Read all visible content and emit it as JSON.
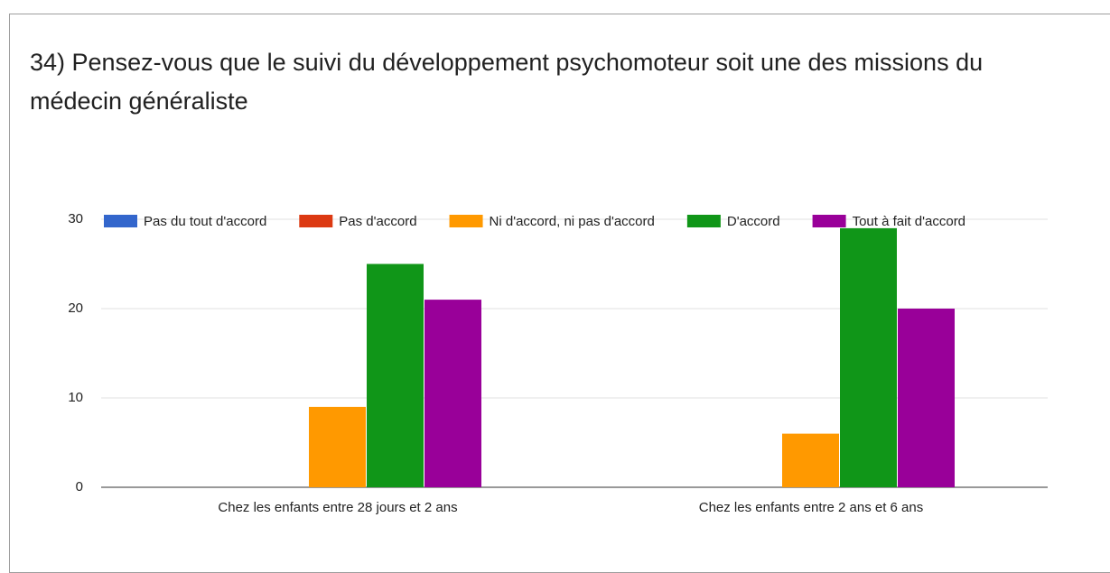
{
  "chart_data": {
    "type": "bar",
    "title": "34) Pensez-vous que le suivi du développement psychomoteur soit une des missions du médecin généraliste",
    "categories": [
      "Chez les enfants entre 28 jours et 2 ans",
      "Chez les enfants entre 2 ans et 6 ans"
    ],
    "series": [
      {
        "name": "Pas du tout d'accord",
        "color": "#3366cc",
        "values": [
          0,
          0
        ]
      },
      {
        "name": "Pas d'accord",
        "color": "#dc3912",
        "values": [
          0,
          0
        ]
      },
      {
        "name": "Ni d'accord, ni pas d'accord",
        "color": "#ff9900",
        "values": [
          9,
          6
        ]
      },
      {
        "name": "D'accord",
        "color": "#109618",
        "values": [
          25,
          29
        ]
      },
      {
        "name": "Tout à fait d'accord",
        "color": "#990099",
        "values": [
          21,
          20
        ]
      }
    ],
    "ylim": [
      0,
      30
    ],
    "yticks": [
      0,
      10,
      20,
      30
    ],
    "grid": true,
    "legend": "top"
  }
}
